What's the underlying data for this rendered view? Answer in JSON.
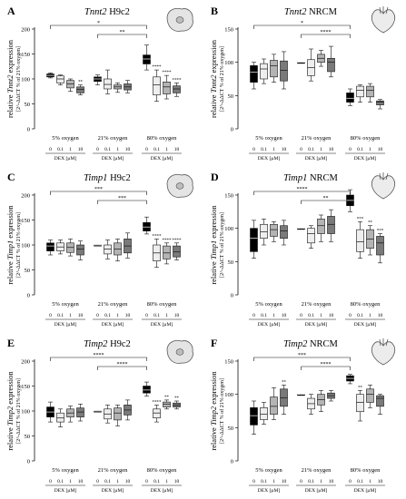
{
  "chart_data": [
    {
      "letter": "A",
      "gene": "Tnnt2",
      "cell": "H9c2",
      "icon": "single-cell-icon",
      "type": "box",
      "ylabel_gene": "Tnnt2",
      "ylabel_unit": "[2^-ΔΔCT % of 21% oxygen]",
      "ylim": [
        0,
        200
      ],
      "yticks": [
        0,
        50,
        100,
        150,
        200
      ],
      "groups": [
        "5% oxygen",
        "21% oxygen",
        "80% oxygen"
      ],
      "dex_ticks": [
        "0",
        "0.1",
        "1",
        "10"
      ],
      "xlabel": "DEX [µM]",
      "boxes": [
        [
          [
            102,
            104,
            107,
            110,
            112
          ],
          [
            88,
            92,
            100,
            106,
            108
          ],
          [
            75,
            82,
            90,
            97,
            100
          ],
          [
            68,
            72,
            79,
            84,
            88
          ],
          [
            88,
            95,
            100,
            104,
            108
          ],
          [
            70,
            80,
            89,
            100,
            118
          ],
          [
            73,
            80,
            84,
            88,
            92
          ],
          [
            72,
            78,
            84,
            90,
            97
          ],
          [
            118,
            130,
            140,
            148,
            168
          ],
          [
            55,
            68,
            88,
            104,
            118
          ],
          [
            60,
            70,
            84,
            94,
            107
          ],
          [
            65,
            72,
            80,
            86,
            92
          ]
        ]
      ],
      "stars": [
        [
          3,
          "**"
        ],
        [
          9,
          "****"
        ],
        [
          10,
          "****"
        ],
        [
          11,
          "****"
        ]
      ],
      "brackets": [
        [
          0,
          8,
          "*"
        ],
        [
          4,
          8,
          "**"
        ]
      ]
    },
    {
      "letter": "B",
      "gene": "Tnnt2",
      "cell": "NRCM",
      "icon": "heart-icon",
      "type": "box",
      "ylabel_gene": "Tnnt2",
      "ylabel_unit": "[2^-ΔΔCT % of 21% oxygen]",
      "ylim": [
        0,
        150
      ],
      "yticks": [
        0,
        50,
        100,
        150
      ],
      "groups": [
        "5% oxygen",
        "21% oxygen",
        "80% oxygen"
      ],
      "dex_ticks": [
        "0",
        "0.1",
        "1",
        "10"
      ],
      "xlabel": "DEX [µM]",
      "boxes": [
        [
          [
            60,
            70,
            85,
            95,
            100
          ],
          [
            68,
            75,
            90,
            98,
            105
          ],
          [
            70,
            78,
            95,
            103,
            112
          ],
          [
            60,
            72,
            88,
            102,
            116
          ],
          [
            100,
            100,
            100,
            100,
            100
          ],
          [
            72,
            80,
            92,
            104,
            120
          ],
          [
            94,
            100,
            106,
            112,
            118
          ],
          [
            78,
            86,
            100,
            106,
            124
          ],
          [
            35,
            40,
            46,
            54,
            60
          ],
          [
            40,
            48,
            58,
            64,
            66
          ],
          [
            40,
            48,
            58,
            64,
            68
          ],
          [
            30,
            36,
            40,
            42,
            44
          ]
        ]
      ],
      "stars": [],
      "brackets": [
        [
          0,
          8,
          "*"
        ],
        [
          4,
          8,
          "****"
        ]
      ]
    },
    {
      "letter": "C",
      "gene": "Timp1",
      "cell": "H9c2",
      "icon": "single-cell-icon",
      "type": "box",
      "ylabel_gene": "Timp1",
      "ylabel_unit": "[2^-ΔΔCT % of 21% oxygen]",
      "ylim": [
        0,
        200
      ],
      "yticks": [
        0,
        50,
        100,
        150,
        200
      ],
      "groups": [
        "5% oxygen",
        "21% oxygen",
        "80% oxygen"
      ],
      "dex_ticks": [
        "0",
        "0.1",
        "1",
        "10"
      ],
      "xlabel": "DEX [µM]",
      "boxes": [
        [
          [
            80,
            88,
            98,
            104,
            110
          ],
          [
            82,
            88,
            96,
            104,
            110
          ],
          [
            78,
            85,
            95,
            104,
            112
          ],
          [
            70,
            80,
            92,
            100,
            108
          ],
          [
            100,
            100,
            100,
            100,
            100
          ],
          [
            72,
            82,
            92,
            100,
            110
          ],
          [
            68,
            80,
            92,
            104,
            112
          ],
          [
            74,
            84,
            98,
            112,
            124
          ],
          [
            122,
            128,
            136,
            145,
            156
          ],
          [
            55,
            68,
            84,
            100,
            112
          ],
          [
            62,
            72,
            84,
            98,
            104
          ],
          [
            70,
            76,
            86,
            98,
            104
          ]
        ]
      ],
      "stars": [
        [
          9,
          "****"
        ],
        [
          10,
          "****"
        ],
        [
          11,
          "****"
        ]
      ],
      "brackets": [
        [
          0,
          8,
          "***"
        ],
        [
          4,
          8,
          "***"
        ]
      ]
    },
    {
      "letter": "D",
      "gene": "Timp1",
      "cell": "NRCM",
      "icon": "heart-icon",
      "type": "box",
      "ylabel_gene": "Timp1",
      "ylabel_unit": "[2^-ΔΔCT % of 21% oxygen]",
      "ylim": [
        0,
        150
      ],
      "yticks": [
        0,
        50,
        100,
        150
      ],
      "groups": [
        "5% oxygen",
        "21% oxygen",
        "80% oxygen"
      ],
      "dex_ticks": [
        "0",
        "0.1",
        "1",
        "10"
      ],
      "xlabel": "DEX [µM]",
      "boxes": [
        [
          [
            55,
            65,
            85,
            100,
            112
          ],
          [
            75,
            85,
            95,
            106,
            114
          ],
          [
            80,
            88,
            98,
            106,
            110
          ],
          [
            75,
            85,
            96,
            104,
            112
          ],
          [
            100,
            100,
            100,
            100,
            100
          ],
          [
            70,
            78,
            92,
            100,
            104
          ],
          [
            80,
            92,
            104,
            114,
            120
          ],
          [
            80,
            92,
            106,
            118,
            128
          ],
          [
            125,
            134,
            142,
            150,
            158
          ],
          [
            55,
            65,
            80,
            98,
            110
          ],
          [
            60,
            70,
            84,
            98,
            104
          ],
          [
            48,
            60,
            78,
            88,
            92
          ]
        ]
      ],
      "stars": [
        [
          9,
          "***"
        ],
        [
          10,
          "**"
        ],
        [
          11,
          "***"
        ]
      ],
      "brackets": [
        [
          0,
          8,
          "****"
        ],
        [
          4,
          8,
          "**"
        ]
      ]
    },
    {
      "letter": "E",
      "gene": "Timp2",
      "cell": "H9c2",
      "icon": "single-cell-icon",
      "type": "box",
      "ylabel_gene": "Timp2",
      "ylabel_unit": "[2^-ΔΔCT % of 21% oxygen]",
      "ylim": [
        0,
        200
      ],
      "yticks": [
        0,
        50,
        100,
        150,
        200
      ],
      "groups": [
        "5% oxygen",
        "21% oxygen",
        "80% oxygen"
      ],
      "dex_ticks": [
        "0",
        "0.1",
        "1",
        "10"
      ],
      "xlabel": "DEX [µM]",
      "boxes": [
        [
          [
            78,
            88,
            98,
            108,
            118
          ],
          [
            68,
            78,
            86,
            96,
            104
          ],
          [
            78,
            88,
            96,
            104,
            110
          ],
          [
            80,
            88,
            98,
            106,
            114
          ],
          [
            100,
            100,
            100,
            100,
            100
          ],
          [
            76,
            84,
            94,
            104,
            112
          ],
          [
            70,
            82,
            96,
            106,
            112
          ],
          [
            82,
            92,
            102,
            112,
            122
          ],
          [
            130,
            136,
            142,
            150,
            158
          ],
          [
            78,
            86,
            96,
            104,
            112
          ],
          [
            104,
            108,
            114,
            118,
            122
          ],
          [
            104,
            108,
            112,
            116,
            120
          ]
        ]
      ],
      "stars": [
        [
          9,
          "****"
        ],
        [
          10,
          "**"
        ],
        [
          11,
          "**"
        ]
      ],
      "brackets": [
        [
          0,
          8,
          "****"
        ],
        [
          4,
          8,
          "****"
        ]
      ]
    },
    {
      "letter": "F",
      "gene": "Timp2",
      "cell": "NRCM",
      "icon": "heart-icon",
      "type": "box",
      "ylabel_gene": "Timp2",
      "ylabel_unit": "[2^-ΔΔCT % of 21% oxygen]",
      "ylim": [
        0,
        150
      ],
      "yticks": [
        0,
        50,
        100,
        150
      ],
      "groups": [
        "5% oxygen",
        "21% oxygen",
        "80% oxygen"
      ],
      "dex_ticks": [
        "0",
        "0.1",
        "1",
        "10"
      ],
      "xlabel": "DEX [µM]",
      "boxes": [
        [
          [
            40,
            54,
            68,
            80,
            90
          ],
          [
            55,
            62,
            70,
            80,
            88
          ],
          [
            62,
            70,
            82,
            96,
            110
          ],
          [
            70,
            82,
            95,
            108,
            114
          ],
          [
            100,
            100,
            100,
            100,
            100
          ],
          [
            70,
            78,
            86,
            94,
            100
          ],
          [
            74,
            84,
            92,
            100,
            106
          ],
          [
            90,
            94,
            98,
            102,
            106
          ],
          [
            116,
            120,
            124,
            128,
            130
          ],
          [
            60,
            74,
            88,
            100,
            106
          ],
          [
            80,
            88,
            100,
            108,
            114
          ],
          [
            70,
            82,
            94,
            98,
            100
          ]
        ]
      ],
      "stars": [
        [
          3,
          "**"
        ],
        [
          9,
          "**"
        ]
      ],
      "brackets": [
        [
          0,
          8,
          "***"
        ],
        [
          4,
          8,
          "****"
        ]
      ]
    }
  ],
  "colors": {
    "box_dex0_80": "#000000",
    "box_dex0": "#ffffff",
    "box_dex01": "#eeeeee",
    "box_dex1": "#b4b4b4",
    "box_dex10": "#7a7a7a",
    "line": "#111111"
  },
  "labels": {
    "ylabel_prefix": "relative",
    "ylabel_suffix": "expression"
  }
}
